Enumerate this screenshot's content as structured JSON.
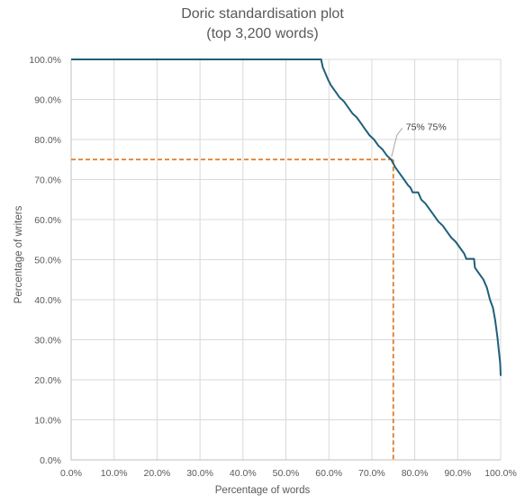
{
  "chart_data": {
    "type": "line",
    "title": [
      "Doric standardisation plot",
      "(top 3,200 words)"
    ],
    "xlabel": "Percentage of words",
    "ylabel": "Percentage of writers",
    "xlim": [
      0,
      100
    ],
    "ylim": [
      0,
      100
    ],
    "x_ticks": [
      "0.0%",
      "10.0%",
      "20.0%",
      "30.0%",
      "40.0%",
      "50.0%",
      "60.0%",
      "70.0%",
      "80.0%",
      "90.0%",
      "100.0%"
    ],
    "y_ticks": [
      "0.0%",
      "10.0%",
      "20.0%",
      "30.0%",
      "40.0%",
      "50.0%",
      "60.0%",
      "70.0%",
      "80.0%",
      "90.0%",
      "100.0%"
    ],
    "grid": true,
    "series": [
      {
        "color": "#1f5f7a",
        "points": [
          [
            0,
            100
          ],
          [
            58.2,
            100
          ],
          [
            58.6,
            98.0
          ],
          [
            59.2,
            96.5
          ],
          [
            59.8,
            95.0
          ],
          [
            60.5,
            93.5
          ],
          [
            61.5,
            92.0
          ],
          [
            62.5,
            90.5
          ],
          [
            63.5,
            89.5
          ],
          [
            64.5,
            88.0
          ],
          [
            65.5,
            86.5
          ],
          [
            66.5,
            85.5
          ],
          [
            67.5,
            84.0
          ],
          [
            68.5,
            82.5
          ],
          [
            69.5,
            81.0
          ],
          [
            70.5,
            80.0
          ],
          [
            71.5,
            78.5
          ],
          [
            72.5,
            77.5
          ],
          [
            73.5,
            76.0
          ],
          [
            74.5,
            75.0
          ],
          [
            75.5,
            73.0
          ],
          [
            76.5,
            71.5
          ],
          [
            77.5,
            70.0
          ],
          [
            78.5,
            68.5
          ],
          [
            79.0,
            68.0
          ],
          [
            79.5,
            66.8
          ],
          [
            80.8,
            66.8
          ],
          [
            81.5,
            65.0
          ],
          [
            82.5,
            64.0
          ],
          [
            83.5,
            62.5
          ],
          [
            84.5,
            61.0
          ],
          [
            85.5,
            59.5
          ],
          [
            86.5,
            58.5
          ],
          [
            87.5,
            57.0
          ],
          [
            88.5,
            55.5
          ],
          [
            89.5,
            54.5
          ],
          [
            90.5,
            53.0
          ],
          [
            91.5,
            51.5
          ],
          [
            92.0,
            50.2
          ],
          [
            93.8,
            50.2
          ],
          [
            94.0,
            48.0
          ],
          [
            95.0,
            46.5
          ],
          [
            96.0,
            45.0
          ],
          [
            96.8,
            43.0
          ],
          [
            97.5,
            40.0
          ],
          [
            98.2,
            38.0
          ],
          [
            98.7,
            35.0
          ],
          [
            99.2,
            31.0
          ],
          [
            99.6,
            27.0
          ],
          [
            99.9,
            24.0
          ],
          [
            100,
            21.0
          ]
        ]
      }
    ],
    "reference_lines": {
      "x": 75,
      "y": 75,
      "color": "#e07b28",
      "style": "dashed"
    },
    "annotation": {
      "text": "75% 75%",
      "x": 75,
      "y": 75
    }
  }
}
